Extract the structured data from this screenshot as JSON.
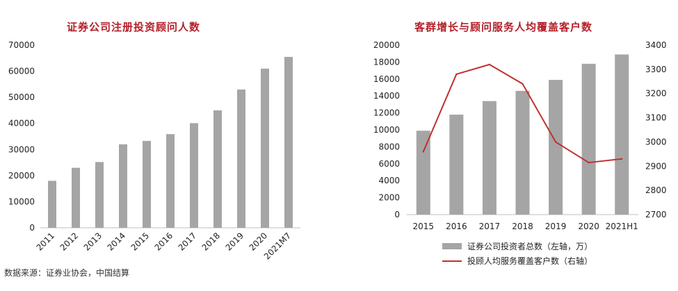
{
  "chart_data": [
    {
      "type": "bar",
      "title": "证券公司注册投资顾问人数",
      "categories": [
        "2011",
        "2012",
        "2013",
        "2014",
        "2015",
        "2016",
        "2017",
        "2018",
        "2019",
        "2020",
        "2021M7"
      ],
      "values": [
        18000,
        23000,
        25200,
        32000,
        33300,
        35900,
        40100,
        45000,
        53000,
        61000,
        65500
      ],
      "ylim": [
        0,
        70000
      ],
      "yticks": [
        "0",
        "10000",
        "20000",
        "30000",
        "40000",
        "50000",
        "60000",
        "70000"
      ],
      "grid": false,
      "bar_color": "#a5a5a5"
    },
    {
      "type": "bar+line",
      "title": "客群增长与顾问服务人均覆盖客户数",
      "categories": [
        "2015",
        "2016",
        "2017",
        "2018",
        "2019",
        "2020",
        "2021H1"
      ],
      "series": [
        {
          "name": "证券公司投资者总数（左轴，万）",
          "type": "bar",
          "axis": "left",
          "values": [
            9900,
            11800,
            13400,
            14600,
            15900,
            17800,
            18900
          ],
          "color": "#a5a5a5"
        },
        {
          "name": "投顾人均服务覆盖客户数（右轴）",
          "type": "line",
          "axis": "right",
          "values": [
            2960,
            3280,
            3320,
            3240,
            3000,
            2915,
            2930
          ],
          "color": "#c0302f"
        }
      ],
      "ylim_left": [
        0,
        20000
      ],
      "yticks_left": [
        "0",
        "2000",
        "4000",
        "6000",
        "8000",
        "10000",
        "12000",
        "14000",
        "16000",
        "18000",
        "20000"
      ],
      "ylim_right": [
        2700,
        3400
      ],
      "yticks_right": [
        "2700",
        "2800",
        "2900",
        "3000",
        "3100",
        "3200",
        "3300",
        "3400"
      ],
      "grid": false,
      "legend_placement": "bottom"
    }
  ],
  "footer": {
    "source": "数据来源：证券业协会，中国结算"
  }
}
